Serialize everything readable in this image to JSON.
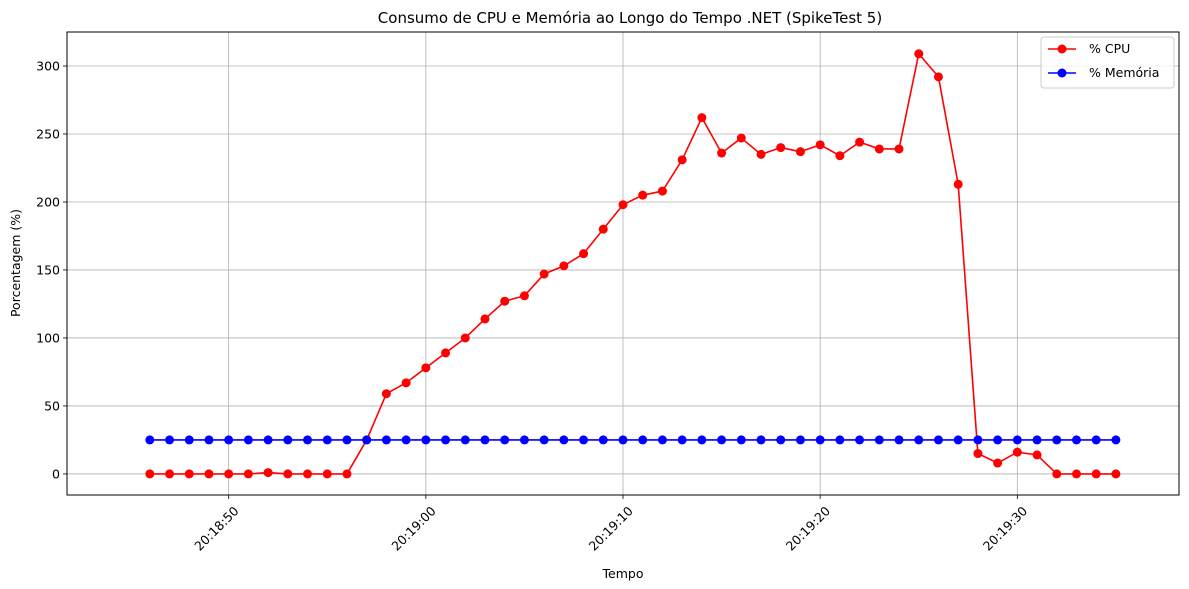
{
  "chart_data": {
    "type": "line",
    "title": "Consumo de CPU e Memória ao Longo do Tempo .NET (SpikeTest 5)",
    "xlabel": "Tempo",
    "ylabel": "Porcentagem (%)",
    "x_start": "20:18:46",
    "x_step_seconds": 1,
    "x_ticks": [
      "20:18:50",
      "20:19:00",
      "20:19:10",
      "20:19:20",
      "20:19:30"
    ],
    "x_tick_seconds": [
      50,
      60,
      70,
      80,
      90
    ],
    "xlim_seconds": [
      41.8,
      98.2
    ],
    "y_ticks": [
      0,
      50,
      100,
      150,
      200,
      250,
      300
    ],
    "ylim": [
      -15.5,
      325
    ],
    "grid": true,
    "legend_position": "upper right",
    "series": [
      {
        "name": "% CPU",
        "color": "#ff0000",
        "values": [
          0,
          0,
          0,
          0,
          0,
          0,
          1,
          0,
          0,
          0,
          0,
          25,
          59,
          67,
          78,
          89,
          100,
          114,
          127,
          131,
          147,
          153,
          162,
          180,
          198,
          205,
          208,
          231,
          262,
          236,
          247,
          235,
          240,
          237,
          242,
          234,
          244,
          239,
          239,
          309,
          292,
          213,
          15,
          8,
          16,
          14,
          0,
          0,
          0,
          0
        ]
      },
      {
        "name": "% Memória",
        "color": "#0000ff",
        "values": [
          25,
          25,
          25,
          25,
          25,
          25,
          25,
          25,
          25,
          25,
          25,
          25,
          25,
          25,
          25,
          25,
          25,
          25,
          25,
          25,
          25,
          25,
          25,
          25,
          25,
          25,
          25,
          25,
          25,
          25,
          25,
          25,
          25,
          25,
          25,
          25,
          25,
          25,
          25,
          25,
          25,
          25,
          25,
          25,
          25,
          25,
          25,
          25,
          25,
          25
        ]
      }
    ]
  }
}
